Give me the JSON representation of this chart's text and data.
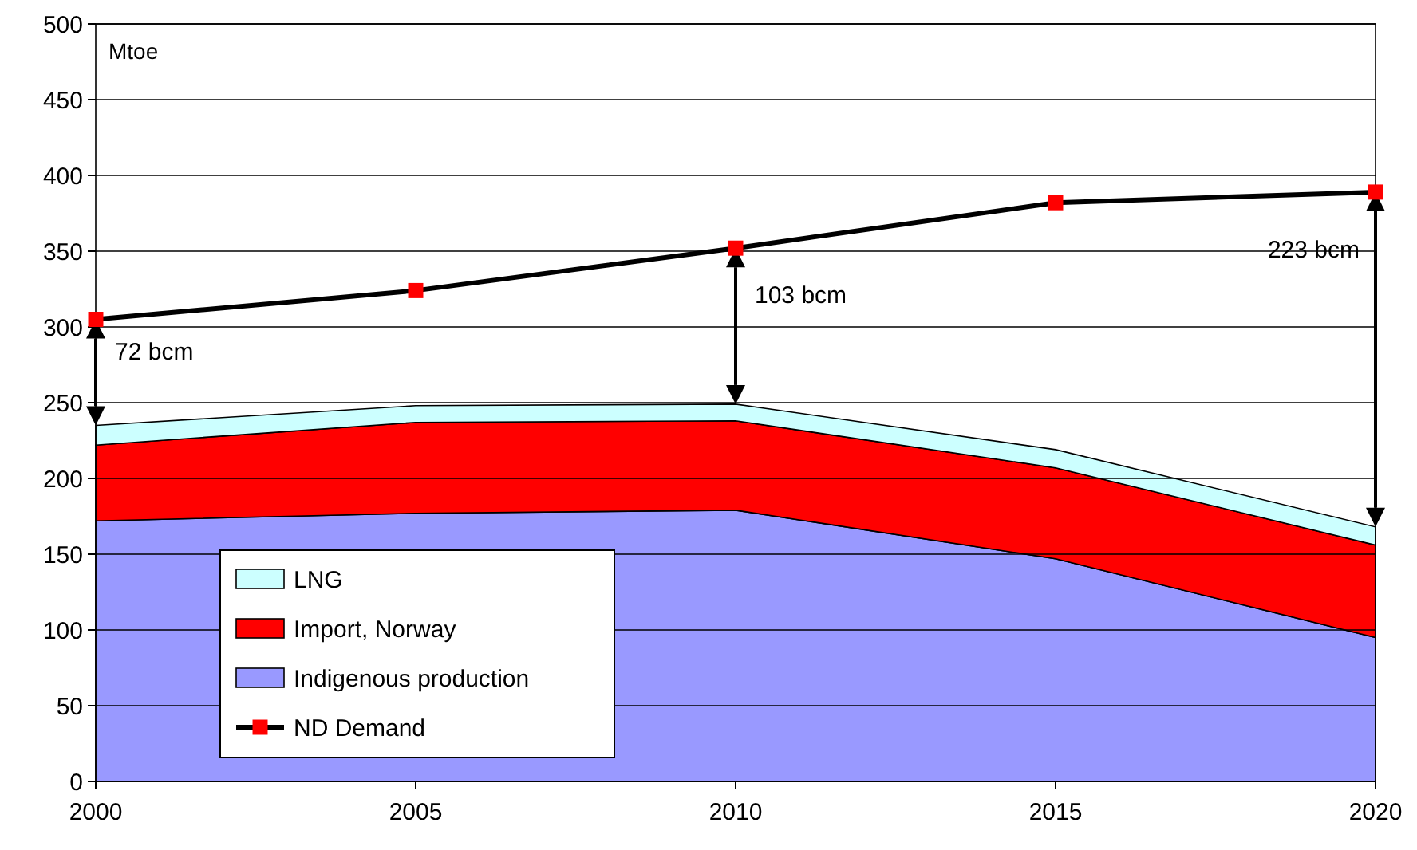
{
  "chart_data": {
    "type": "area",
    "stacked": true,
    "ylabel": "Mtoe",
    "x": [
      2000,
      2005,
      2010,
      2015,
      2020
    ],
    "xlim": [
      2000,
      2020
    ],
    "xticks": [
      2000,
      2005,
      2010,
      2015,
      2020
    ],
    "ylim": [
      0,
      500
    ],
    "yticks": [
      0,
      50,
      100,
      150,
      200,
      250,
      300,
      350,
      400,
      450,
      500
    ],
    "grid": "y",
    "legend": "bottom left",
    "series": [
      {
        "name": "Indigenous production",
        "color": "#9999ff",
        "values": [
          172,
          177,
          179,
          147,
          95
        ]
      },
      {
        "name": "Import, Norway",
        "color": "#ff0000",
        "values": [
          50,
          60,
          59,
          60,
          61
        ]
      },
      {
        "name": "LNG",
        "color": "#ccffff",
        "values": [
          13,
          11,
          11,
          12,
          12
        ]
      },
      {
        "name": "ND Demand",
        "type": "line",
        "color": "#000000",
        "colors": [
          "#ff0000",
          "#ff0000",
          "#ff0000",
          "#ff0000",
          "#ff0000"
        ],
        "marker": "square",
        "values": [
          305,
          324,
          352,
          382,
          389
        ]
      }
    ],
    "annotations": [
      {
        "text": "72 bcm",
        "x": 2000,
        "y": 305
      },
      {
        "text": "103 bcm",
        "x": 2010,
        "y": 352
      },
      {
        "text": "223 bcm",
        "x": 2020,
        "y": 389
      }
    ]
  }
}
